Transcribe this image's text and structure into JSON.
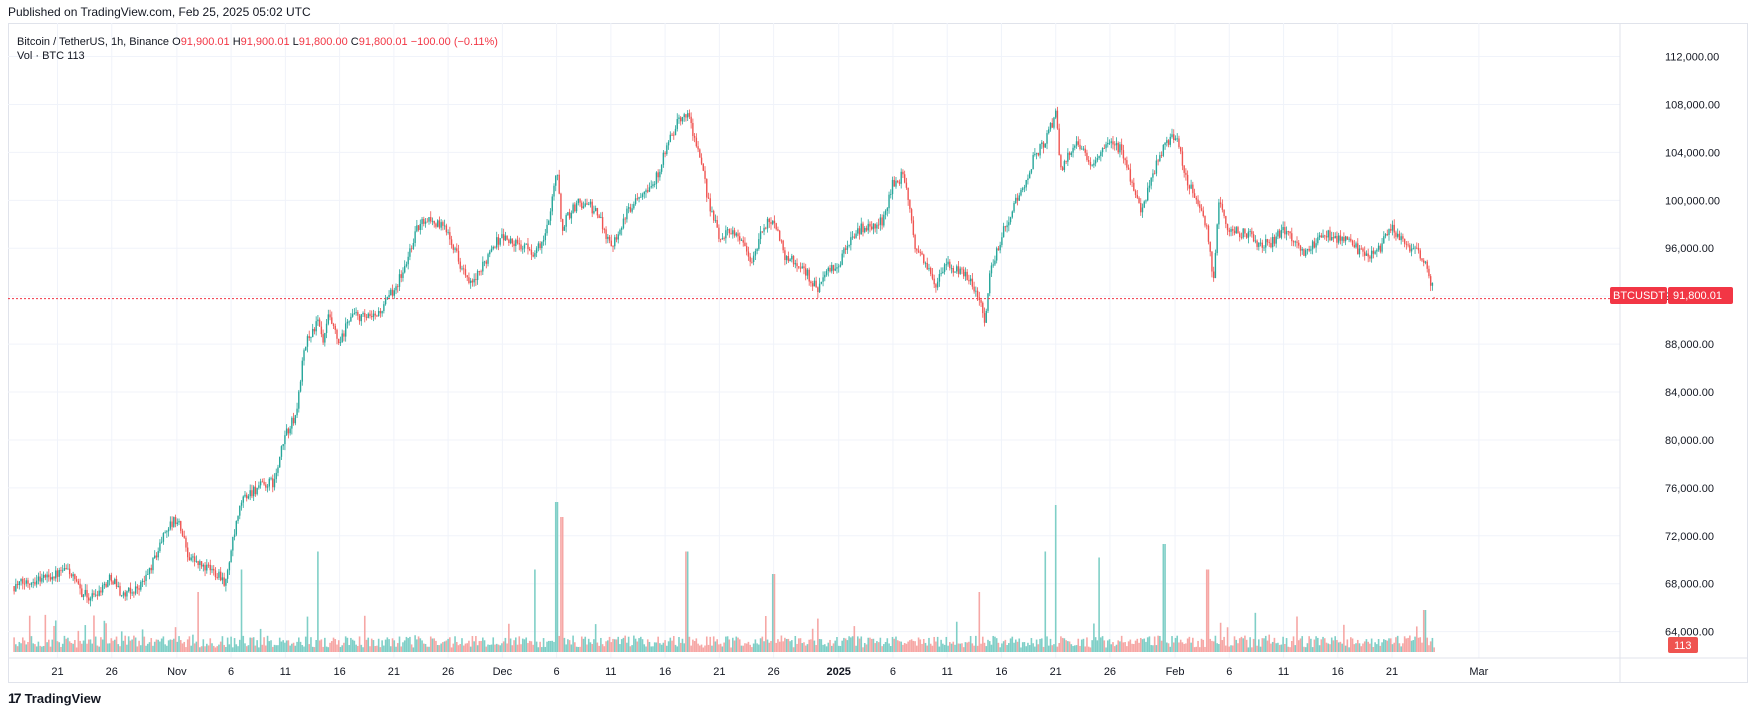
{
  "header": {
    "published": "Published on TradingView.com, Feb 25, 2025 05:02 UTC"
  },
  "legend": {
    "symbol": "Bitcoin / TetherUS, 1h, Binance",
    "o_label": "O",
    "o": "91,900.01",
    "h_label": "H",
    "h": "91,900.01",
    "l_label": "L",
    "l": "91,800.00",
    "c_label": "C",
    "c": "91,800.01",
    "change": "−100.00 (−0.11%)",
    "vol_label": "Vol · BTC",
    "vol_value": "113"
  },
  "price_badge": {
    "ticker": "BTCUSDT",
    "price": "91,800.01"
  },
  "vol_badge": "113",
  "footer": {
    "logo": "17",
    "brand": "TradingView"
  },
  "colors": {
    "up": "#26a69a",
    "down": "#ef5350",
    "up_vol": "#7fcfc7",
    "down_vol": "#f6a7a5",
    "price_line": "#f23645",
    "grid": "#f0f3fa"
  },
  "chart_data": {
    "type": "candlestick",
    "symbol": "BTCUSDT",
    "timeframe": "1h",
    "y_ticks": [
      "112,000.00",
      "108,000.00",
      "104,000.00",
      "100,000.00",
      "96,000.00",
      "92,000.00",
      "88,000.00",
      "84,000.00",
      "80,000.00",
      "76,000.00",
      "72,000.00",
      "68,000.00",
      "64,000.00"
    ],
    "y_values": [
      112000,
      108000,
      104000,
      100000,
      96000,
      92000,
      88000,
      84000,
      80000,
      76000,
      72000,
      68000,
      64000
    ],
    "ylim": [
      61800,
      114800
    ],
    "x_ticks": [
      {
        "label": "21",
        "day": 0
      },
      {
        "label": "26",
        "day": 5
      },
      {
        "label": "Nov",
        "day": 11
      },
      {
        "label": "6",
        "day": 16
      },
      {
        "label": "11",
        "day": 21
      },
      {
        "label": "16",
        "day": 26
      },
      {
        "label": "21",
        "day": 31
      },
      {
        "label": "26",
        "day": 36
      },
      {
        "label": "Dec",
        "day": 41
      },
      {
        "label": "6",
        "day": 46
      },
      {
        "label": "11",
        "day": 51
      },
      {
        "label": "16",
        "day": 56
      },
      {
        "label": "21",
        "day": 61
      },
      {
        "label": "26",
        "day": 66
      },
      {
        "label": "2025",
        "day": 72
      },
      {
        "label": "6",
        "day": 77
      },
      {
        "label": "11",
        "day": 82
      },
      {
        "label": "16",
        "day": 87
      },
      {
        "label": "21",
        "day": 92
      },
      {
        "label": "26",
        "day": 97
      },
      {
        "label": "Feb",
        "day": 103
      },
      {
        "label": "6",
        "day": 108
      },
      {
        "label": "11",
        "day": 113
      },
      {
        "label": "16",
        "day": 118
      },
      {
        "label": "21",
        "day": 123
      },
      {
        "label": "Mar",
        "day": 131
      }
    ],
    "price_path": [
      {
        "day": -4,
        "price": 67800
      },
      {
        "day": -2,
        "price": 68400
      },
      {
        "day": 0,
        "price": 68800
      },
      {
        "day": 1,
        "price": 69200
      },
      {
        "day": 2,
        "price": 67500
      },
      {
        "day": 3,
        "price": 66800
      },
      {
        "day": 4,
        "price": 67600
      },
      {
        "day": 5,
        "price": 68600
      },
      {
        "day": 6,
        "price": 67000
      },
      {
        "day": 7,
        "price": 67400
      },
      {
        "day": 8,
        "price": 68200
      },
      {
        "day": 9,
        "price": 70200
      },
      {
        "day": 10,
        "price": 72600
      },
      {
        "day": 11,
        "price": 73400
      },
      {
        "day": 11.5,
        "price": 72200
      },
      {
        "day": 12,
        "price": 70500
      },
      {
        "day": 13,
        "price": 69600
      },
      {
        "day": 14,
        "price": 69200
      },
      {
        "day": 15,
        "price": 68800
      },
      {
        "day": 15.5,
        "price": 68000
      },
      {
        "day": 16,
        "price": 70800
      },
      {
        "day": 17,
        "price": 75000
      },
      {
        "day": 18,
        "price": 75800
      },
      {
        "day": 19,
        "price": 76200
      },
      {
        "day": 20,
        "price": 76500
      },
      {
        "day": 21,
        "price": 80500
      },
      {
        "day": 22,
        "price": 82000
      },
      {
        "day": 22.5,
        "price": 86000
      },
      {
        "day": 23,
        "price": 88400
      },
      {
        "day": 24,
        "price": 89800
      },
      {
        "day": 24.5,
        "price": 88000
      },
      {
        "day": 25,
        "price": 90300
      },
      {
        "day": 26,
        "price": 87800
      },
      {
        "day": 27,
        "price": 90500
      },
      {
        "day": 28,
        "price": 90200
      },
      {
        "day": 29,
        "price": 90100
      },
      {
        "day": 30,
        "price": 91000
      },
      {
        "day": 31,
        "price": 92600
      },
      {
        "day": 32,
        "price": 94300
      },
      {
        "day": 33,
        "price": 97400
      },
      {
        "day": 34,
        "price": 98600
      },
      {
        "day": 35,
        "price": 98000
      },
      {
        "day": 36,
        "price": 97500
      },
      {
        "day": 37,
        "price": 95000
      },
      {
        "day": 38,
        "price": 92800
      },
      {
        "day": 39,
        "price": 94000
      },
      {
        "day": 40,
        "price": 96200
      },
      {
        "day": 41,
        "price": 97000
      },
      {
        "day": 42,
        "price": 96400
      },
      {
        "day": 43,
        "price": 96100
      },
      {
        "day": 44,
        "price": 95600
      },
      {
        "day": 45,
        "price": 97000
      },
      {
        "day": 45.5,
        "price": 99800
      },
      {
        "day": 46,
        "price": 102700
      },
      {
        "day": 46.5,
        "price": 97600
      },
      {
        "day": 47,
        "price": 98700
      },
      {
        "day": 48,
        "price": 99800
      },
      {
        "day": 49,
        "price": 99600
      },
      {
        "day": 50,
        "price": 98500
      },
      {
        "day": 51,
        "price": 96200
      },
      {
        "day": 52,
        "price": 98000
      },
      {
        "day": 53,
        "price": 99800
      },
      {
        "day": 54,
        "price": 101000
      },
      {
        "day": 55,
        "price": 101400
      },
      {
        "day": 56,
        "price": 104000
      },
      {
        "day": 57,
        "price": 106200
      },
      {
        "day": 58,
        "price": 107400
      },
      {
        "day": 58.5,
        "price": 106000
      },
      {
        "day": 59,
        "price": 104200
      },
      {
        "day": 60,
        "price": 100000
      },
      {
        "day": 61,
        "price": 96800
      },
      {
        "day": 62,
        "price": 97600
      },
      {
        "day": 63,
        "price": 96800
      },
      {
        "day": 64,
        "price": 94800
      },
      {
        "day": 65,
        "price": 97600
      },
      {
        "day": 66,
        "price": 98600
      },
      {
        "day": 67,
        "price": 95400
      },
      {
        "day": 68,
        "price": 94800
      },
      {
        "day": 69,
        "price": 94000
      },
      {
        "day": 70,
        "price": 92600
      },
      {
        "day": 71,
        "price": 94000
      },
      {
        "day": 72,
        "price": 94500
      },
      {
        "day": 73,
        "price": 96700
      },
      {
        "day": 74,
        "price": 97600
      },
      {
        "day": 75,
        "price": 97800
      },
      {
        "day": 76,
        "price": 98200
      },
      {
        "day": 77,
        "price": 101400
      },
      {
        "day": 78,
        "price": 102100
      },
      {
        "day": 79,
        "price": 96400
      },
      {
        "day": 80,
        "price": 94600
      },
      {
        "day": 81,
        "price": 93000
      },
      {
        "day": 82,
        "price": 94600
      },
      {
        "day": 83,
        "price": 94000
      },
      {
        "day": 84,
        "price": 93600
      },
      {
        "day": 85,
        "price": 91800
      },
      {
        "day": 85.5,
        "price": 90000
      },
      {
        "day": 86,
        "price": 94200
      },
      {
        "day": 87,
        "price": 97000
      },
      {
        "day": 88,
        "price": 99300
      },
      {
        "day": 89,
        "price": 101000
      },
      {
        "day": 90,
        "price": 103600
      },
      {
        "day": 91,
        "price": 104800
      },
      {
        "day": 92,
        "price": 107200
      },
      {
        "day": 92.5,
        "price": 102400
      },
      {
        "day": 93,
        "price": 103600
      },
      {
        "day": 94,
        "price": 105200
      },
      {
        "day": 95,
        "price": 102900
      },
      {
        "day": 96,
        "price": 103800
      },
      {
        "day": 97,
        "price": 104600
      },
      {
        "day": 98,
        "price": 104400
      },
      {
        "day": 99,
        "price": 101600
      },
      {
        "day": 100,
        "price": 99000
      },
      {
        "day": 101,
        "price": 102400
      },
      {
        "day": 102,
        "price": 104600
      },
      {
        "day": 103,
        "price": 105400
      },
      {
        "day": 104,
        "price": 102000
      },
      {
        "day": 105,
        "price": 100000
      },
      {
        "day": 106,
        "price": 97400
      },
      {
        "day": 106.5,
        "price": 93000
      },
      {
        "day": 107,
        "price": 99800
      },
      {
        "day": 108,
        "price": 97600
      },
      {
        "day": 109,
        "price": 97300
      },
      {
        "day": 110,
        "price": 97000
      },
      {
        "day": 111,
        "price": 96200
      },
      {
        "day": 112,
        "price": 96600
      },
      {
        "day": 113,
        "price": 97600
      },
      {
        "day": 114,
        "price": 96800
      },
      {
        "day": 115,
        "price": 95600
      },
      {
        "day": 116,
        "price": 96400
      },
      {
        "day": 117,
        "price": 97200
      },
      {
        "day": 118,
        "price": 96800
      },
      {
        "day": 119,
        "price": 96600
      },
      {
        "day": 120,
        "price": 95800
      },
      {
        "day": 121,
        "price": 95400
      },
      {
        "day": 122,
        "price": 96200
      },
      {
        "day": 123,
        "price": 97800
      },
      {
        "day": 124,
        "price": 96400
      },
      {
        "day": 125,
        "price": 95800
      },
      {
        "day": 126,
        "price": 95000
      },
      {
        "day": 127,
        "price": 91800
      }
    ],
    "volume_spikes": [
      {
        "day": 46,
        "vol": 1
      },
      {
        "day": 92,
        "vol": 0.98
      },
      {
        "day": 46.5,
        "vol": 0.9
      },
      {
        "day": 102,
        "vol": 0.72
      },
      {
        "day": 58,
        "vol": 0.67
      },
      {
        "day": 91,
        "vol": 0.67
      },
      {
        "day": 96,
        "vol": 0.63
      },
      {
        "day": 24,
        "vol": 0.67
      },
      {
        "day": 66,
        "vol": 0.52
      },
      {
        "day": 13,
        "vol": 0.4
      },
      {
        "day": 17,
        "vol": 0.55
      },
      {
        "day": 44,
        "vol": 0.55
      },
      {
        "day": 126,
        "vol": 0.28
      },
      {
        "day": 106,
        "vol": 0.55
      },
      {
        "day": 85,
        "vol": 0.4
      }
    ],
    "last_price": 91800.01,
    "last_volume": 113
  }
}
